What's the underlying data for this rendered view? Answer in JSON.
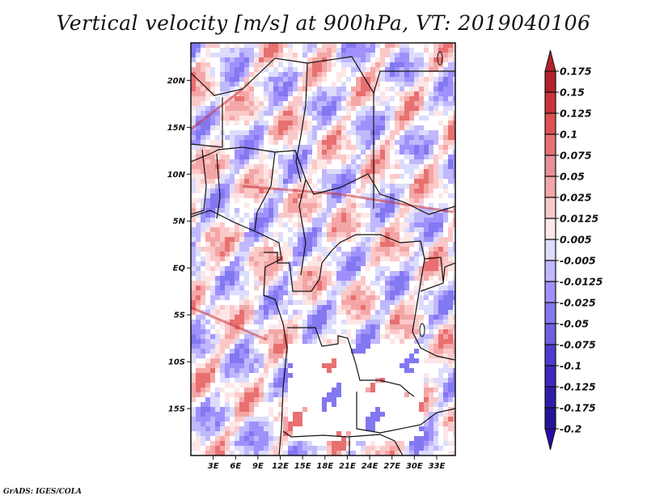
{
  "title": "Vertical velocity [m/s] at 900hPa, VT: 2019040106",
  "credit": "GrADS: IGES/COLA",
  "map": {
    "variable": "Vertical velocity",
    "units": "m/s",
    "level": "900hPa",
    "valid_time": "2019040106",
    "lat_ticks": [
      "20N",
      "15N",
      "10N",
      "5N",
      "EQ",
      "5S",
      "10S",
      "15S"
    ],
    "lat_values": [
      20,
      15,
      10,
      5,
      0,
      -5,
      -10,
      -15
    ],
    "lon_ticks": [
      "3E",
      "6E",
      "9E",
      "12E",
      "15E",
      "18E",
      "21E",
      "24E",
      "27E",
      "30E",
      "33E"
    ],
    "lon_values": [
      3,
      6,
      9,
      12,
      15,
      18,
      21,
      24,
      27,
      30,
      33
    ],
    "lat_range": [
      -20,
      24
    ],
    "lon_range": [
      0,
      35.5
    ]
  },
  "colorbar": {
    "labels": [
      "0.175",
      "0.15",
      "0.125",
      "0.1",
      "0.075",
      "0.05",
      "0.025",
      "0.0125",
      "0.005",
      "-0.005",
      "-0.0125",
      "-0.025",
      "-0.05",
      "-0.075",
      "-0.1",
      "-0.125",
      "-0.175",
      "-0.2"
    ],
    "colors": [
      "#b2222a",
      "#c8343a",
      "#e05050",
      "#e87070",
      "#e89098",
      "#f4a6a6",
      "#fbc8c8",
      "#fde6e6",
      "#ffffff",
      "#dcdcfc",
      "#c0b8fc",
      "#a090fc",
      "#8278f0",
      "#6e60e0",
      "#4e3cd0",
      "#3e28be",
      "#2e1ca8",
      "#24149a"
    ],
    "over_color": "#b2222a",
    "under_color": "#2a0aa8"
  },
  "chart_data": {
    "type": "heatmap",
    "title": "Vertical velocity [m/s] at 900hPa, VT: 2019040106",
    "xlabel": "",
    "ylabel": "",
    "x_ticks": [
      "3E",
      "6E",
      "9E",
      "12E",
      "15E",
      "18E",
      "21E",
      "24E",
      "27E",
      "30E",
      "33E"
    ],
    "y_ticks": [
      "20N",
      "15N",
      "10N",
      "5N",
      "EQ",
      "5S",
      "10S",
      "15S"
    ],
    "levels": [
      -0.2,
      -0.175,
      -0.125,
      -0.1,
      -0.075,
      -0.05,
      -0.025,
      -0.0125,
      -0.005,
      0.005,
      0.0125,
      0.025,
      0.05,
      0.075,
      0.1,
      0.125,
      0.15,
      0.175
    ],
    "legend": "right",
    "xlim": [
      0,
      35.5
    ],
    "ylim": [
      -20,
      24
    ]
  }
}
